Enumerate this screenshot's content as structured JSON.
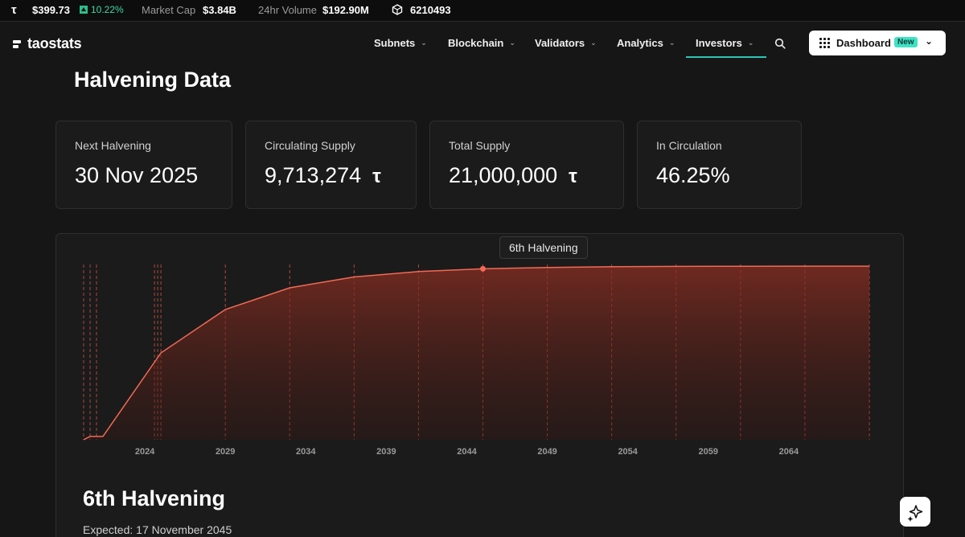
{
  "ticker": {
    "symbol": "τ",
    "price": "$399.73",
    "change": "10.22%",
    "market_cap_label": "Market Cap",
    "market_cap_value": "$3.84B",
    "volume_label": "24hr Volume",
    "volume_value": "$192.90M",
    "block_icon": "cube-icon",
    "block_value": "6210493"
  },
  "nav": {
    "logo": "taostats",
    "items": [
      {
        "label": "Subnets"
      },
      {
        "label": "Blockchain"
      },
      {
        "label": "Validators"
      },
      {
        "label": "Analytics"
      },
      {
        "label": "Investors",
        "active": true
      }
    ],
    "dashboard_label": "Dashboard",
    "new_badge": "New"
  },
  "page": {
    "title": "Halvening Data"
  },
  "cards": [
    {
      "label": "Next Halvening",
      "value": "30 Nov 2025",
      "unit": ""
    },
    {
      "label": "Circulating Supply",
      "value": "9,713,274",
      "unit": "τ"
    },
    {
      "label": "Total Supply",
      "value": "21,000,000",
      "unit": "τ"
    },
    {
      "label": "In Circulation",
      "value": "46.25%",
      "unit": ""
    }
  ],
  "tooltip": "6th Halvening",
  "selected_halvening": {
    "title": "6th Halvening",
    "expected": "Expected: 17 November 2045"
  },
  "colors": {
    "accent": "#2ec4b6",
    "line": "#f26a55",
    "positive": "#3fd8a4"
  },
  "chart_data": {
    "type": "area",
    "xlabel": "",
    "ylabel": "",
    "x_ticks": [
      2024,
      2029,
      2034,
      2039,
      2044,
      2049,
      2054,
      2059,
      2064
    ],
    "xlim": [
      2020,
      2069.5
    ],
    "ylim": [
      0,
      21000000
    ],
    "grid": false,
    "x": [
      2020.2,
      2020.6,
      2021.0,
      2021.4,
      2025.0,
      2029.0,
      2033.0,
      2037.0,
      2041.0,
      2045.0,
      2049.0,
      2053.0,
      2057.0,
      2061.0,
      2065.0,
      2069.0
    ],
    "values": [
      0,
      400000,
      400000,
      400000,
      10500000,
      15750000,
      18375000,
      19687500,
      20343750,
      20671875,
      20835937,
      20917968,
      20958984,
      20979492,
      20989746,
      20994873
    ],
    "halvening_markers": [
      2020.2,
      2020.6,
      2021.0,
      2024.6,
      2024.8,
      2025.0,
      2029.0,
      2033.0,
      2037.0,
      2041.0,
      2045.0,
      2049.0,
      2053.0,
      2057.0,
      2061.0,
      2065.0,
      2069.0
    ],
    "highlight_x": 2045.0
  }
}
